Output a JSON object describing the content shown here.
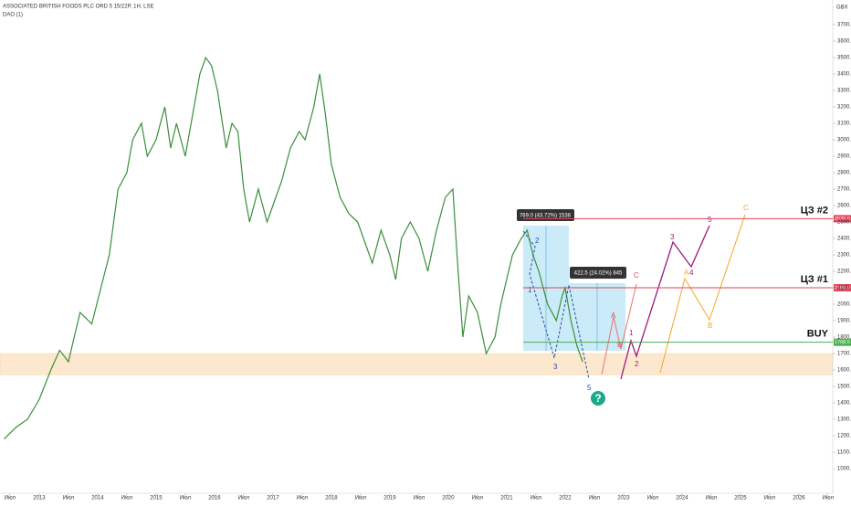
{
  "header": {
    "title": "ASSOCIATED BRITISH FOODS PLC ORD 5 15/22P, 1H, LSE",
    "indicator": "DAO (1)",
    "currency": "GBX"
  },
  "chart_data": {
    "type": "line",
    "color": "#3a8f3a",
    "x": [
      2012.4,
      2012.6,
      2012.8,
      2013.0,
      2013.2,
      2013.35,
      2013.5,
      2013.7,
      2013.9,
      2014.0,
      2014.2,
      2014.35,
      2014.5,
      2014.6,
      2014.75,
      2014.85,
      2015.0,
      2015.15,
      2015.25,
      2015.35,
      2015.5,
      2015.65,
      2015.75,
      2015.85,
      2015.95,
      2016.05,
      2016.2,
      2016.3,
      2016.4,
      2016.5,
      2016.6,
      2016.75,
      2016.9,
      2017.0,
      2017.15,
      2017.3,
      2017.45,
      2017.55,
      2017.7,
      2017.8,
      2017.9,
      2018.0,
      2018.15,
      2018.3,
      2018.45,
      2018.6,
      2018.7,
      2018.85,
      2019.0,
      2019.1,
      2019.2,
      2019.35,
      2019.5,
      2019.65,
      2019.8,
      2019.95,
      2020.08,
      2020.15,
      2020.25,
      2020.35,
      2020.5,
      2020.65,
      2020.8,
      2020.9,
      2021.0,
      2021.1,
      2021.25,
      2021.35,
      2021.45,
      2021.55,
      2021.7,
      2021.85,
      2021.95,
      2022.0,
      2022.1,
      2022.2,
      2022.3
    ],
    "values": [
      1180,
      1250,
      1300,
      1420,
      1600,
      1720,
      1650,
      1950,
      1880,
      2020,
      2300,
      2700,
      2800,
      3000,
      3100,
      2900,
      3000,
      3200,
      2950,
      3100,
      2900,
      3200,
      3400,
      3500,
      3450,
      3300,
      2950,
      3100,
      3050,
      2700,
      2500,
      2700,
      2500,
      2600,
      2750,
      2950,
      3050,
      3000,
      3200,
      3400,
      3150,
      2850,
      2650,
      2550,
      2500,
      2350,
      2250,
      2450,
      2300,
      2150,
      2400,
      2500,
      2400,
      2200,
      2450,
      2650,
      2700,
      2300,
      1800,
      2050,
      1950,
      1700,
      1800,
      2000,
      2150,
      2300,
      2400,
      2450,
      2300,
      2200,
      2000,
      1900,
      2050,
      2100,
      1900,
      1750,
      1650
    ],
    "xlim": [
      2012.33,
      2026.58
    ],
    "ylim": [
      850,
      3850
    ],
    "xticks": [
      {
        "value": 2012.5,
        "label": "Июл"
      },
      {
        "value": 2013,
        "label": "2013"
      },
      {
        "value": 2013.5,
        "label": "Июл"
      },
      {
        "value": 2014,
        "label": "2014"
      },
      {
        "value": 2014.5,
        "label": "Июл"
      },
      {
        "value": 2015,
        "label": "2015"
      },
      {
        "value": 2015.5,
        "label": "Июл"
      },
      {
        "value": 2016,
        "label": "2016"
      },
      {
        "value": 2016.5,
        "label": "Июл"
      },
      {
        "value": 2017,
        "label": "2017"
      },
      {
        "value": 2017.5,
        "label": "Июл"
      },
      {
        "value": 2018,
        "label": "2018"
      },
      {
        "value": 2018.5,
        "label": "Июл"
      },
      {
        "value": 2019,
        "label": "2019"
      },
      {
        "value": 2019.5,
        "label": "Июл"
      },
      {
        "value": 2020,
        "label": "2020"
      },
      {
        "value": 2020.5,
        "label": "Июл"
      },
      {
        "value": 2021,
        "label": "2021"
      },
      {
        "value": 2021.5,
        "label": "Июл"
      },
      {
        "value": 2022,
        "label": "2022"
      },
      {
        "value": 2022.5,
        "label": "Июл"
      },
      {
        "value": 2023,
        "label": "2023"
      },
      {
        "value": 2023.5,
        "label": "Июл"
      },
      {
        "value": 2024,
        "label": "2024"
      },
      {
        "value": 2024.5,
        "label": "Июл"
      },
      {
        "value": 2025,
        "label": "2025"
      },
      {
        "value": 2025.5,
        "label": "Июл"
      },
      {
        "value": 2026,
        "label": "2026"
      },
      {
        "value": 2026.5,
        "label": "Июл"
      }
    ],
    "yticks": [
      {
        "value": 1000,
        "label": "1000.0"
      },
      {
        "value": 1100,
        "label": "1100.0"
      },
      {
        "value": 1200,
        "label": "1200.0"
      },
      {
        "value": 1300,
        "label": "1300.0"
      },
      {
        "value": 1400,
        "label": "1400.0"
      },
      {
        "value": 1500,
        "label": "1500.0"
      },
      {
        "value": 1600,
        "label": "1600.0"
      },
      {
        "value": 1700,
        "label": "1700.0"
      },
      {
        "value": 1800,
        "label": "1800.0"
      },
      {
        "value": 1900,
        "label": "1900.0"
      },
      {
        "value": 2000,
        "label": "2000.0"
      },
      {
        "value": 2100,
        "label": "2100.0"
      },
      {
        "value": 2200,
        "label": "2200.0"
      },
      {
        "value": 2300,
        "label": "2300.0"
      },
      {
        "value": 2400,
        "label": "2400.0"
      },
      {
        "value": 2500,
        "label": "2500.0"
      },
      {
        "value": 2600,
        "label": "2600.0"
      },
      {
        "value": 2700,
        "label": "2700.0"
      },
      {
        "value": 2800,
        "label": "2800.0"
      },
      {
        "value": 2900,
        "label": "2900.0"
      },
      {
        "value": 3000,
        "label": "3000.0"
      },
      {
        "value": 3100,
        "label": "3100.0"
      },
      {
        "value": 3200,
        "label": "3200.0"
      },
      {
        "value": 3300,
        "label": "3300.0"
      },
      {
        "value": 3400,
        "label": "3400.0"
      },
      {
        "value": 3500,
        "label": "3500.0"
      },
      {
        "value": 3600,
        "label": "3600.0"
      },
      {
        "value": 3700,
        "label": "3700.0"
      }
    ],
    "support_zone": [
      1570,
      1700
    ],
    "zone_color": "#fbd9b0",
    "levels": [
      {
        "label": "ЦЗ #2",
        "value": 2520,
        "price_label": "2520.0",
        "color": "#e0455a"
      },
      {
        "label": "ЦЗ #1",
        "value": 2100,
        "price_label": "2100.0",
        "color": "#e0455a"
      },
      {
        "label": "BUY",
        "value": 1768.5,
        "price_label": "1768.5",
        "color": "#4caf50"
      }
    ],
    "measures": [
      "769.0 (43.72%) 1538",
      "422.5 (24.02%) 845"
    ],
    "annotations": [
      "2",
      "1",
      "3",
      "5",
      "?",
      "C",
      "A",
      "B",
      "1",
      "2",
      "3",
      "5",
      "A",
      "4",
      "B",
      "C"
    ]
  }
}
